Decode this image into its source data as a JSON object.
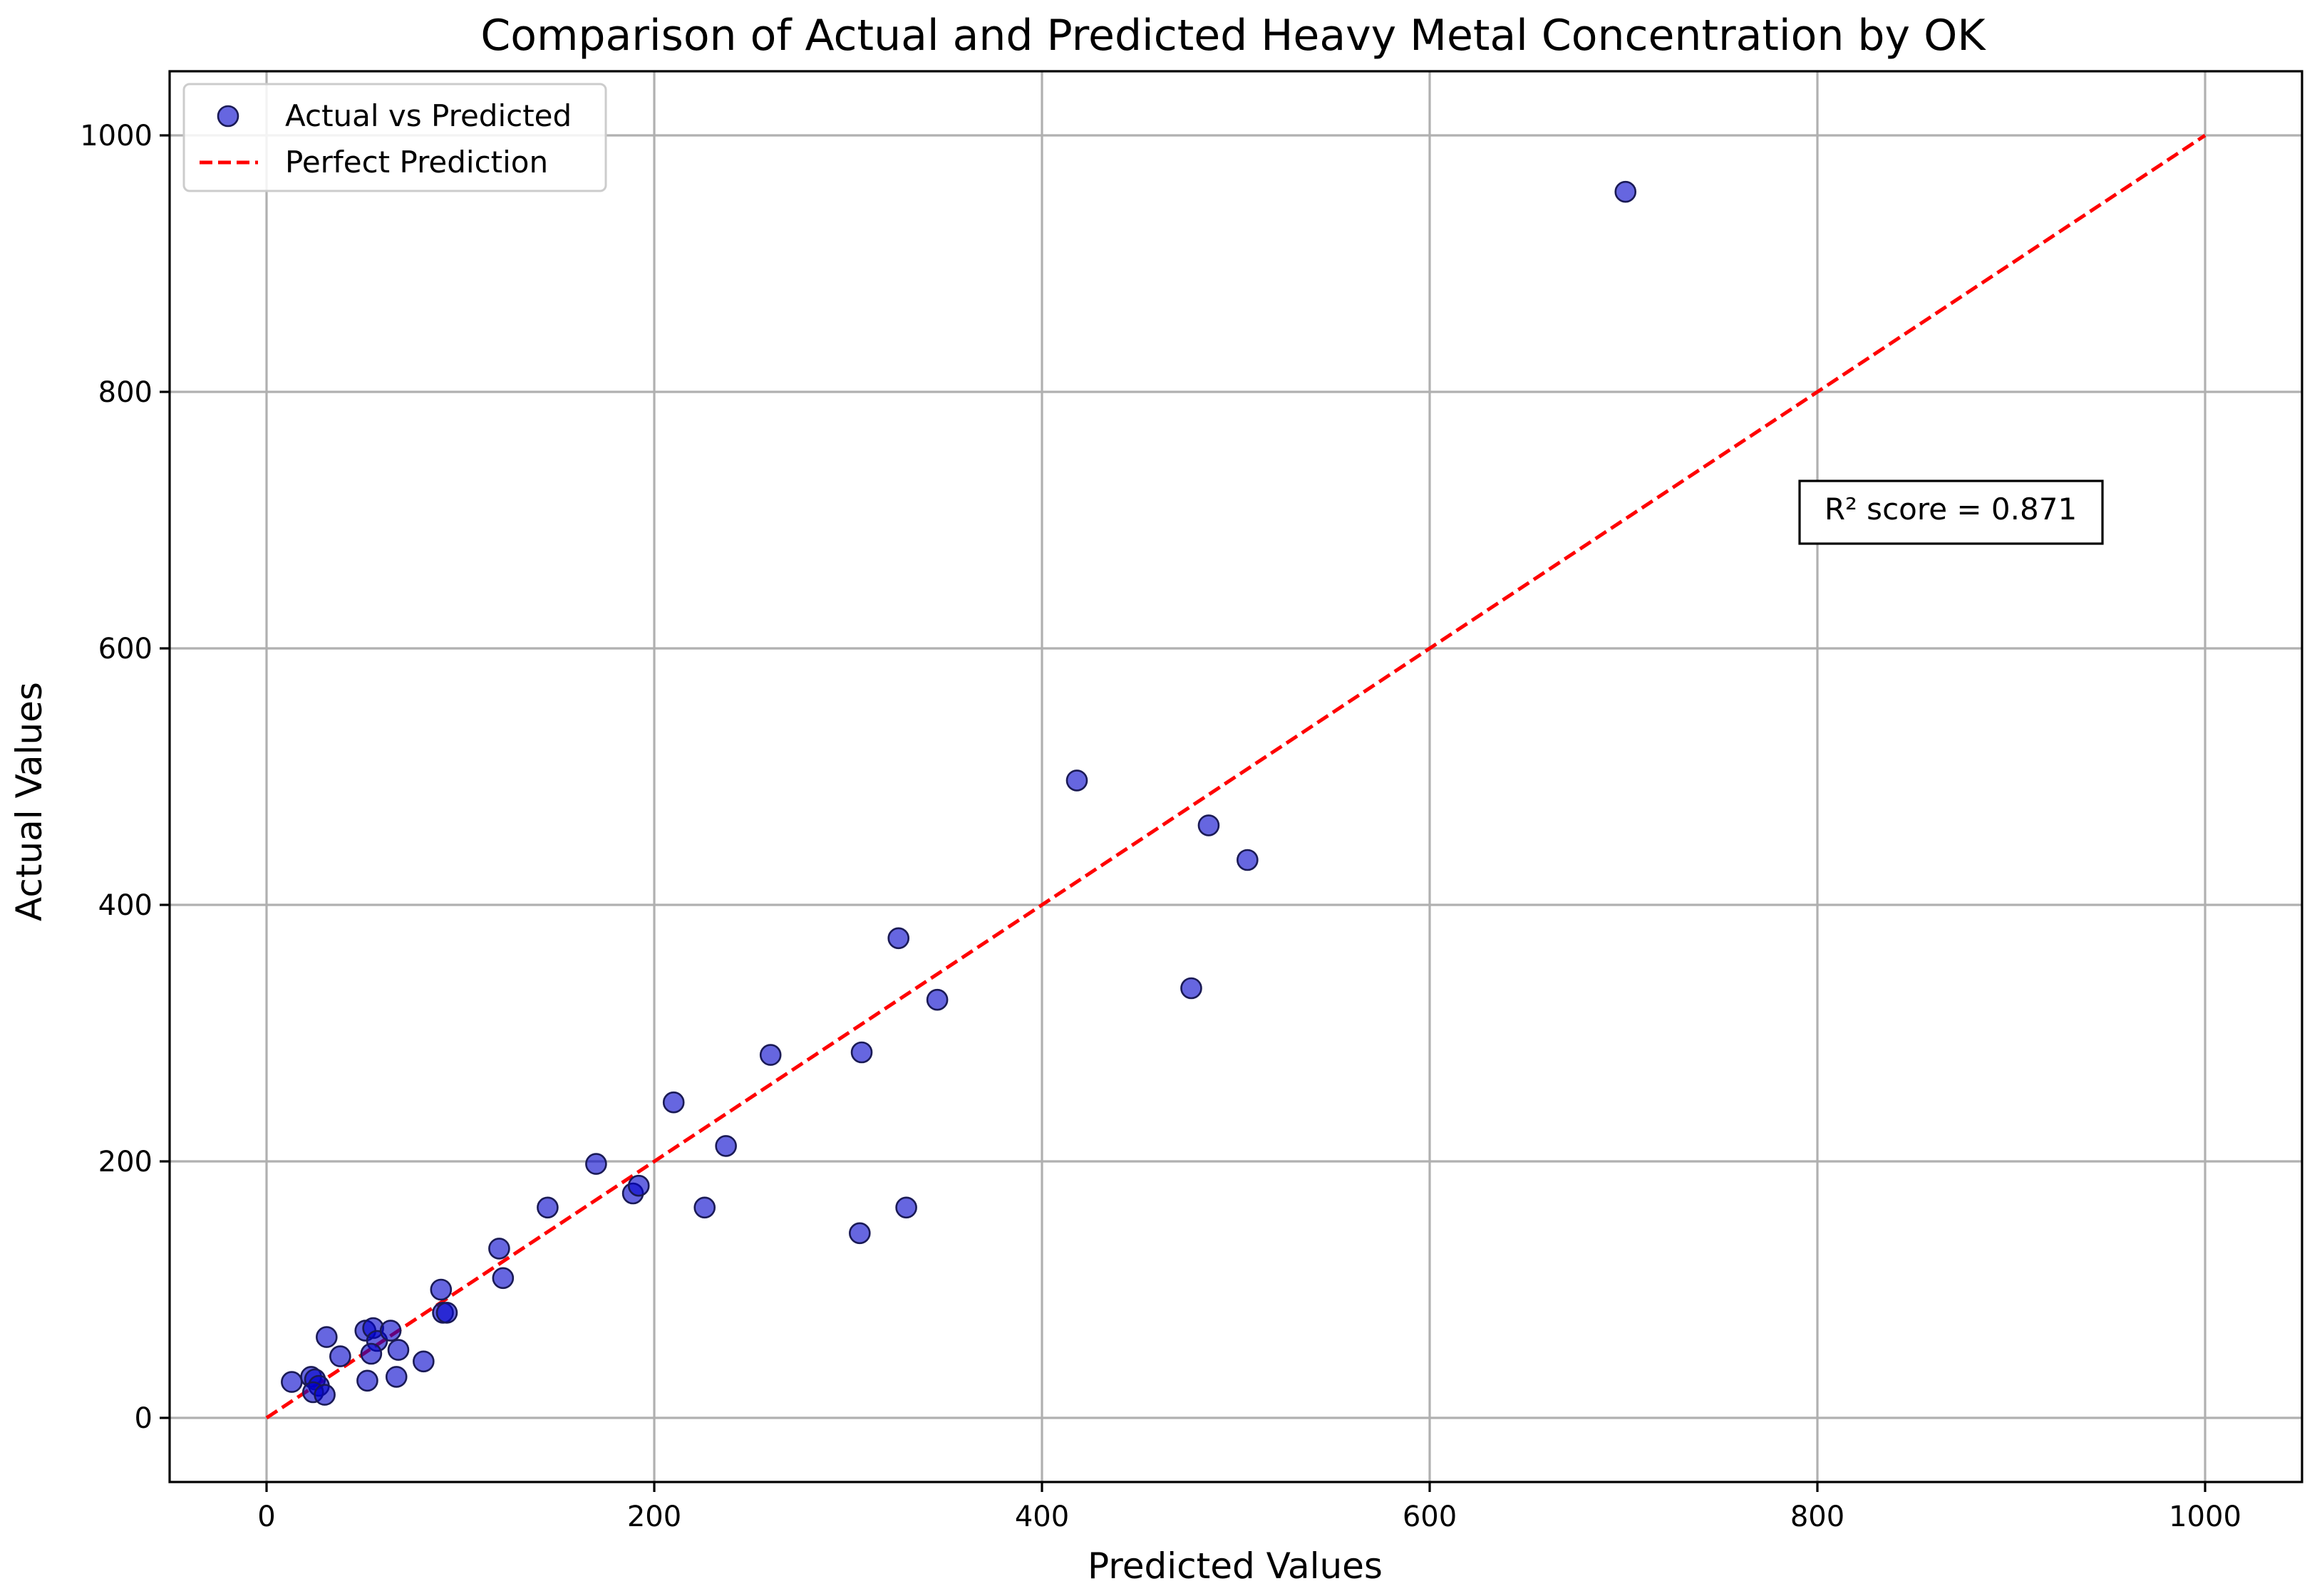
{
  "chart_data": {
    "type": "scatter",
    "title": "Comparison of Actual and Predicted Heavy Metal Concentration by OK",
    "xlabel": "Predicted Values",
    "ylabel": "Actual Values",
    "xlim": [
      -50,
      1050
    ],
    "ylim": [
      -50,
      1050
    ],
    "xticks": [
      0,
      200,
      400,
      600,
      800,
      1000
    ],
    "yticks": [
      0,
      200,
      400,
      600,
      800,
      1000
    ],
    "grid": true,
    "legend_position": "top-left",
    "colors": {
      "points": "#0000cc",
      "point_edge": "#1a1a55",
      "reference_line": "#ff0000",
      "grid": "#b0b0b0"
    },
    "series": [
      {
        "name": "Actual vs Predicted",
        "kind": "scatter",
        "points": [
          [
            13,
            28
          ],
          [
            23,
            32
          ],
          [
            25,
            30
          ],
          [
            27,
            25
          ],
          [
            24,
            20
          ],
          [
            30,
            18
          ],
          [
            31,
            63
          ],
          [
            38,
            48
          ],
          [
            51,
            68
          ],
          [
            55,
            70
          ],
          [
            57,
            60
          ],
          [
            52,
            29
          ],
          [
            54,
            50
          ],
          [
            64,
            68
          ],
          [
            68,
            53
          ],
          [
            67,
            32
          ],
          [
            81,
            44
          ],
          [
            90,
            100
          ],
          [
            91,
            82
          ],
          [
            93,
            82
          ],
          [
            120,
            132
          ],
          [
            122,
            109
          ],
          [
            145,
            164
          ],
          [
            170,
            198
          ],
          [
            189,
            175
          ],
          [
            192,
            181
          ],
          [
            210,
            246
          ],
          [
            226,
            164
          ],
          [
            237,
            212
          ],
          [
            260,
            283
          ],
          [
            306,
            144
          ],
          [
            307,
            285
          ],
          [
            326,
            374
          ],
          [
            330,
            164
          ],
          [
            346,
            326
          ],
          [
            418,
            497
          ],
          [
            477,
            335
          ],
          [
            486,
            462
          ],
          [
            506,
            435
          ],
          [
            701,
            956
          ]
        ]
      },
      {
        "name": "Perfect Prediction",
        "kind": "line",
        "style": "dashed",
        "points": [
          [
            0,
            0
          ],
          [
            1000,
            1000
          ]
        ]
      }
    ],
    "annotations": [
      {
        "text": "R² score = 0.871",
        "x": 870,
        "y": 706
      }
    ]
  }
}
